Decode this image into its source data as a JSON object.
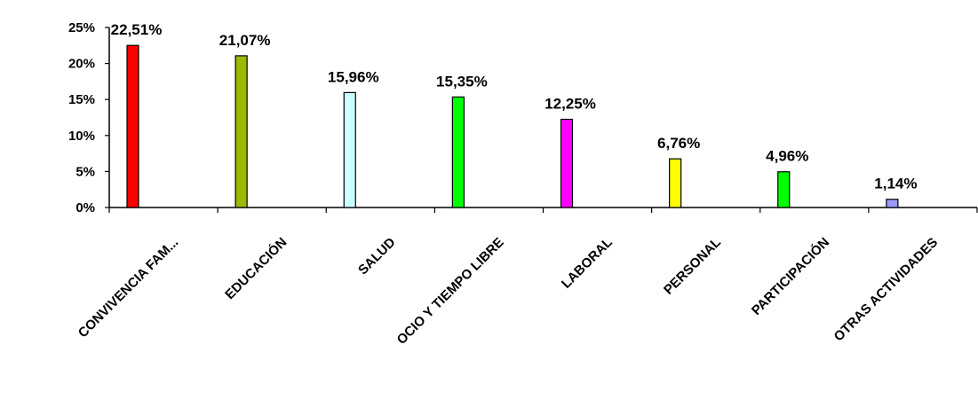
{
  "chart_data": {
    "type": "bar",
    "categories": [
      "CONVIVENCIA FAM...",
      "EDUCACIÓN",
      "SALUD",
      "OCIO Y TIEMPO LIBRE",
      "LABORAL",
      "PERSONAL",
      "PARTICIPACIÓN",
      "OTRAS ACTIVIDADES"
    ],
    "values": [
      22.51,
      21.07,
      15.96,
      15.35,
      12.25,
      6.76,
      4.96,
      1.14
    ],
    "data_labels": [
      "22,51%",
      "21,07%",
      "15,96%",
      "15,35%",
      "12,25%",
      "6,76%",
      "4,96%",
      "1,14%"
    ],
    "colors": [
      "#ff0000",
      "#99bb00",
      "#ccffff",
      "#00ff00",
      "#ff00ff",
      "#ffff00",
      "#00ff00",
      "#9999ff"
    ],
    "y_ticks": [
      {
        "value": 0,
        "label": "0%"
      },
      {
        "value": 5,
        "label": "5%"
      },
      {
        "value": 10,
        "label": "10%"
      },
      {
        "value": 15,
        "label": "15%"
      },
      {
        "value": 20,
        "label": "20%"
      },
      {
        "value": 25,
        "label": "25%"
      }
    ],
    "ylim": [
      0,
      25
    ],
    "title": "",
    "xlabel": "",
    "ylabel": "",
    "grid": false,
    "legend": "none"
  }
}
